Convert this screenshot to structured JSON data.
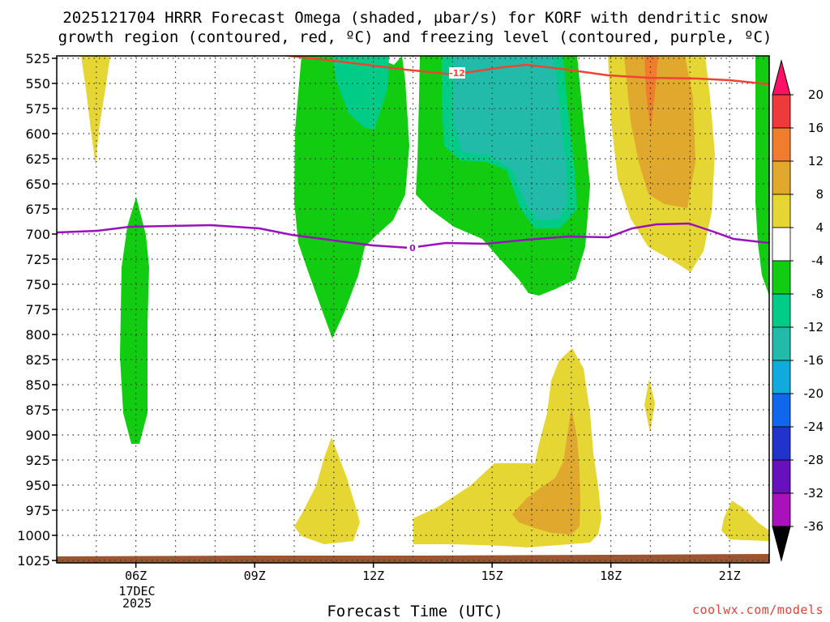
{
  "title_line1": "2025121704 HRRR Forecast Omega (shaded, µbar/s) for KORF with dendritic snow",
  "title_line2": "growth region (contoured, red, ºC) and freezing level (contoured, purple, ºC)",
  "xlabel": "Forecast Time (UTC)",
  "credit": "coolwx.com/models",
  "date_label": [
    "17DEC",
    "2025"
  ],
  "colors": {
    "green": "#11cc11",
    "teal_green": "#00cc88",
    "teal": "#22bbaa",
    "yellow": "#e6d633",
    "light_orange": "#e0a92e",
    "orange": "#f07c2e",
    "red_contour": "#ee4433",
    "purple_contour": "#9911bb",
    "ground": "#9c5530"
  },
  "chart_data": {
    "type": "heatmap",
    "x_axis": {
      "label": "Forecast Time (UTC)",
      "ticks": [
        "06Z",
        "09Z",
        "12Z",
        "15Z",
        "18Z",
        "21Z"
      ],
      "tick_hours": [
        6,
        9,
        12,
        15,
        18,
        21
      ],
      "range_hours": [
        4,
        22
      ]
    },
    "y_axis": {
      "ticks": [
        525,
        550,
        575,
        600,
        625,
        650,
        675,
        700,
        725,
        750,
        775,
        800,
        825,
        850,
        875,
        900,
        925,
        950,
        975,
        1000,
        1025
      ],
      "range": [
        525,
        1025
      ],
      "reversed": true
    },
    "grid": true,
    "colorbar": {
      "levels": [
        20,
        16,
        12,
        8,
        4,
        -4,
        -8,
        -12,
        -16,
        -20,
        -24,
        -28,
        -32,
        -36
      ],
      "colors": [
        "#ff1166",
        "#ee3a3a",
        "#f07c2e",
        "#e0a92e",
        "#e6d633",
        "#ffffff",
        "#11cc11",
        "#00cc88",
        "#22bbaa",
        "#11aadd",
        "#1166ee",
        "#2233cc",
        "#6611bb",
        "#aa11bb",
        "#aaaaaa",
        "#000000"
      ]
    },
    "contours": [
      {
        "color": "red",
        "value": -12,
        "label": "-12"
      },
      {
        "color": "purple",
        "value": 0,
        "label": "0"
      }
    ],
    "surface": "ground near 1020 hPa"
  }
}
